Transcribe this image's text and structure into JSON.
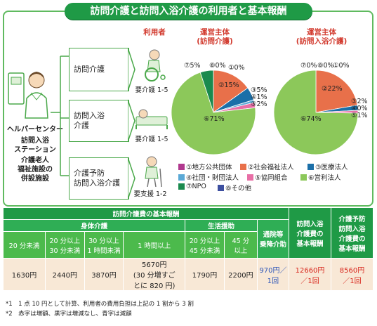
{
  "title": "訪問介護と訪問入浴介護の利用者と基本報酬",
  "providers": {
    "center": "ヘルパーセンター",
    "bath": [
      "訪問入浴",
      "ステーション"
    ],
    "elderly": [
      "介護老人",
      "福祉施設の",
      "併設施設"
    ]
  },
  "users_header": "利用者",
  "services": [
    {
      "label": [
        "訪問介護"
      ],
      "level": "要介護 1-5"
    },
    {
      "label": [
        "訪問入浴",
        "介護"
      ],
      "level": "要介護 1-5"
    },
    {
      "label": [
        "介護予防",
        "訪問入浴介護"
      ],
      "level": "要支援 1-2"
    }
  ],
  "colors": {
    "local_gov": "#b0388e",
    "social_welfare": "#e8704a",
    "medical": "#1b6fa8",
    "foundation": "#5aa9d6",
    "coop": "#e86fa6",
    "for_profit": "#8cc85a",
    "npo": "#1a8a4e",
    "other": "#3d4fa0",
    "green": "#1f9a46"
  },
  "chart_data": [
    {
      "type": "pie",
      "title": [
        "運営主体",
        "(訪問介護)"
      ],
      "categories": [
        "①地方公共団体",
        "②社会福祉法人",
        "③医療法人",
        "④社団・財団法人",
        "⑤協同組合",
        "⑥営利法人",
        "⑦NPO",
        "⑧その他"
      ],
      "values": [
        0,
        15,
        5,
        1,
        2,
        71,
        5,
        0
      ],
      "labels": [
        "①0%",
        "②15%",
        "③5%",
        "④1%",
        "⑤2%",
        "⑥71%",
        "⑦5%",
        "⑧0%"
      ]
    },
    {
      "type": "pie",
      "title": [
        "運営主体",
        "(訪問入浴介護)"
      ],
      "categories": [
        "①地方公共団体",
        "②社会福祉法人",
        "③医療法人",
        "④社団・財団法人",
        "⑤協同組合",
        "⑥営利法人",
        "⑦NPO",
        "⑧その他"
      ],
      "values": [
        0,
        22,
        2,
        0,
        1,
        74,
        0,
        0
      ],
      "labels": [
        "①0%",
        "②22%",
        "③2%",
        "④0%",
        "⑤1%",
        "⑥74%",
        "⑦0%",
        "⑧0%"
      ]
    }
  ],
  "legend": [
    "①地方公共団体",
    "②社会福祉法人",
    "③医療法人",
    "④社団・財団法人",
    "⑤協同組合",
    "⑥営利法人",
    "⑦NPO",
    "⑧その他"
  ],
  "table": {
    "header_main": "訪問介護費の基本報酬",
    "body_care": "身体介護",
    "daily_support": "生活援助",
    "commute": [
      "通院等",
      "乗降介助"
    ],
    "bath_fee": [
      "訪問入浴",
      "介護費の",
      "基本報酬"
    ],
    "prevent_fee": [
      "介護予防",
      "訪問入浴",
      "介護費の",
      "基本報酬"
    ],
    "time_cols": [
      [
        "20 分未満"
      ],
      [
        "20 分以上",
        "30 分未満"
      ],
      [
        "30 分以上",
        "1 時間未満"
      ],
      [
        "1 時間以上"
      ],
      [
        "20 分以上",
        "45 分未満"
      ],
      [
        "45 分",
        "以上"
      ]
    ],
    "values": {
      "v1": "1630円",
      "v2": "2440円",
      "v3": "3870円",
      "v4": [
        "5670円",
        "(30 分増すご",
        "とに 820 円)"
      ],
      "v5": "1790円",
      "v6": "2200円",
      "v7": [
        "970円／",
        "1回"
      ],
      "v8": [
        "12660円",
        "／1回"
      ],
      "v9": [
        "8560円",
        "／1回"
      ]
    }
  },
  "notes": [
    "*1　1 点 10 円として計算、利用者の費用負担は上記の 1 割から 3 割",
    "*2　赤字は増額、黒字は増減なし、青字は減額"
  ]
}
